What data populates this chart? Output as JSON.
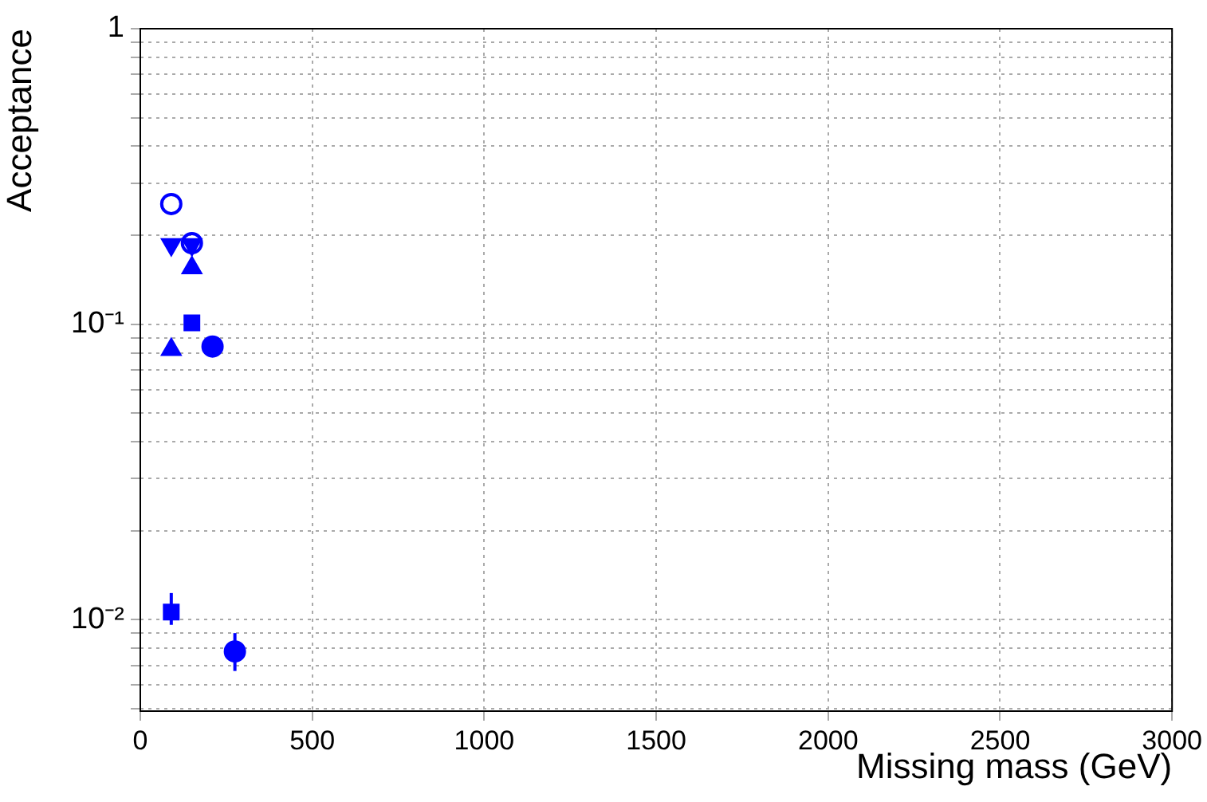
{
  "chart_data": {
    "type": "scatter",
    "xlabel": "Missing mass (GeV)",
    "ylabel": "Acceptance",
    "log": "y",
    "grid": true,
    "legend": false,
    "xlim": [
      0,
      3000
    ],
    "xticks": [
      0,
      500,
      1000,
      1500,
      2000,
      2500,
      3000
    ],
    "ylim": [
      0.0049,
      1
    ],
    "yticks": [
      {
        "value": 0.005,
        "label": null
      },
      {
        "value": 0.006,
        "label": null
      },
      {
        "value": 0.007,
        "label": null
      },
      {
        "value": 0.008,
        "label": null
      },
      {
        "value": 0.009,
        "label": null
      },
      {
        "value": 0.01,
        "label": "10⁻²"
      },
      {
        "value": 0.02,
        "label": null
      },
      {
        "value": 0.03,
        "label": null
      },
      {
        "value": 0.04,
        "label": null
      },
      {
        "value": 0.05,
        "label": null
      },
      {
        "value": 0.06,
        "label": null
      },
      {
        "value": 0.07,
        "label": null
      },
      {
        "value": 0.08,
        "label": null
      },
      {
        "value": 0.09,
        "label": null
      },
      {
        "value": 0.1,
        "label": "10⁻¹"
      },
      {
        "value": 0.2,
        "label": null
      },
      {
        "value": 0.3,
        "label": null
      },
      {
        "value": 0.4,
        "label": null
      },
      {
        "value": 0.5,
        "label": null
      },
      {
        "value": 0.6,
        "label": null
      },
      {
        "value": 0.7,
        "label": null
      },
      {
        "value": 0.8,
        "label": null
      },
      {
        "value": 0.9,
        "label": null
      },
      {
        "value": 1,
        "label": "1"
      }
    ],
    "series": [
      {
        "color": "#0000ff",
        "marker": "circle-open",
        "x": [
          90,
          150
        ],
        "values": [
          0.255,
          0.188
        ]
      },
      {
        "color": "#0000ff",
        "marker": "triangle-down",
        "x": [
          90,
          150
        ],
        "values": [
          0.186,
          0.186
        ]
      },
      {
        "color": "#0000ff",
        "marker": "triangle",
        "x": [
          90,
          150
        ],
        "values": [
          0.082,
          0.155
        ]
      },
      {
        "color": "#0000ff",
        "marker": "square",
        "x": [
          150,
          90
        ],
        "values": [
          0.101,
          0.0106
        ],
        "errors": [
          null,
          [
            0.0096,
            0.0123
          ]
        ]
      },
      {
        "color": "#0000ff",
        "marker": "circle",
        "x": [
          210,
          275
        ],
        "values": [
          0.084,
          0.0078
        ],
        "errors": [
          null,
          [
            0.0067,
            0.009
          ]
        ]
      }
    ]
  }
}
